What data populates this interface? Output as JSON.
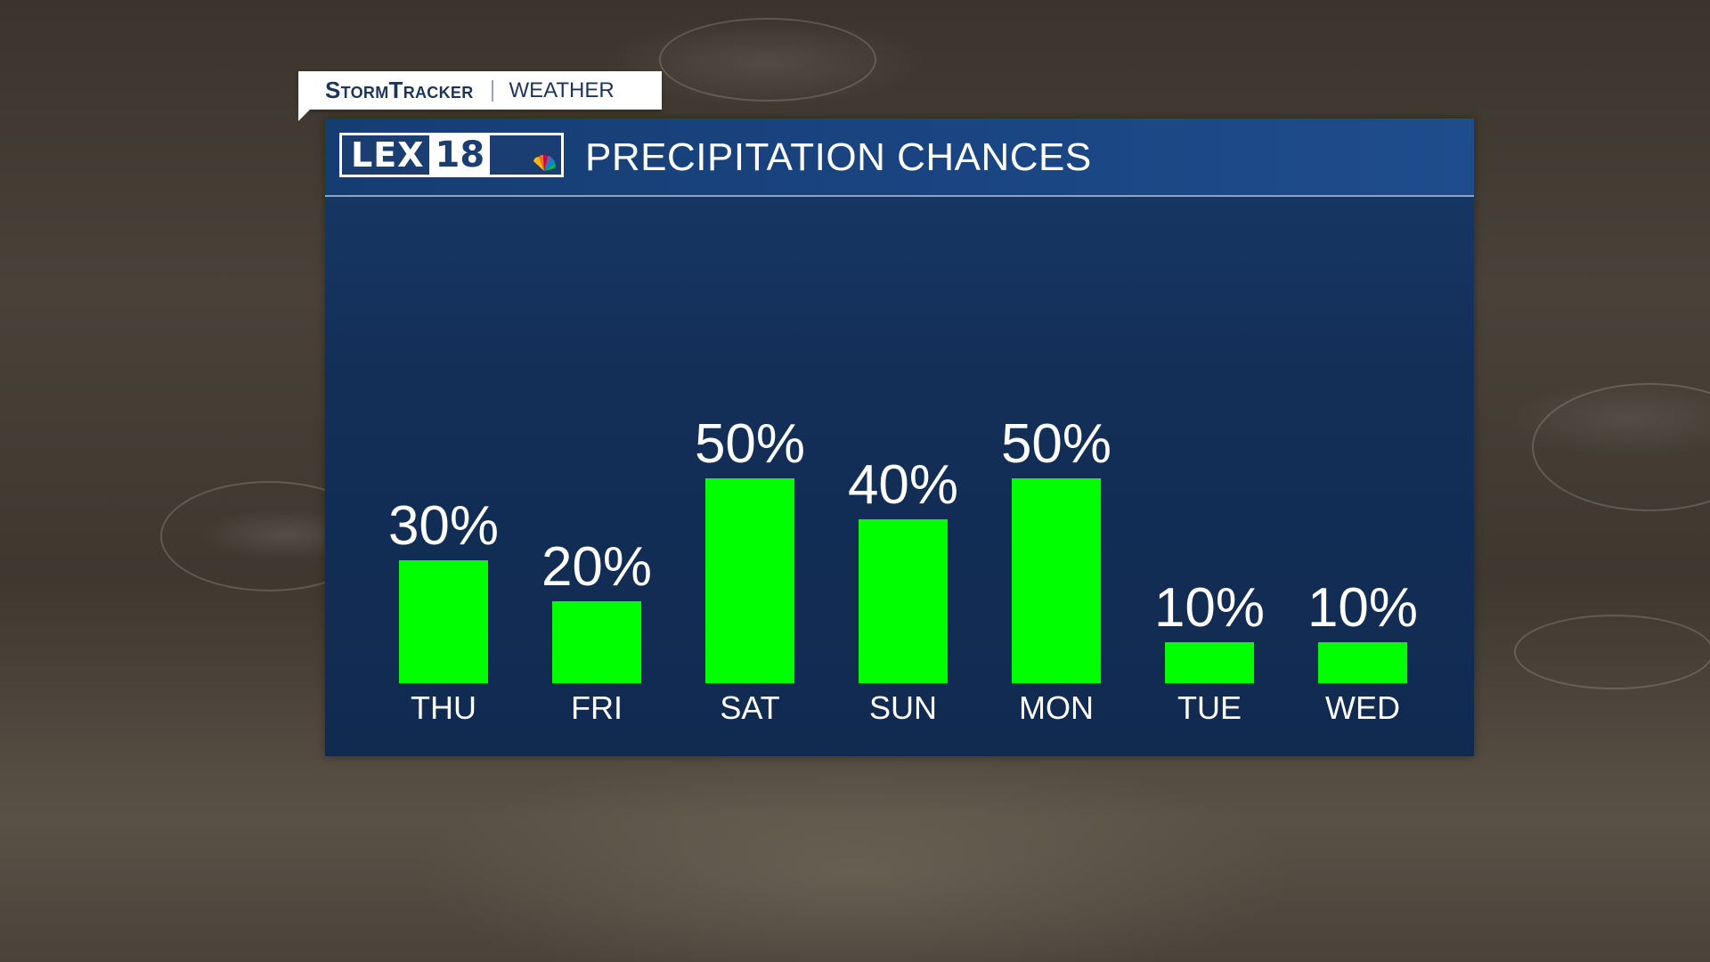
{
  "tag": {
    "brand": "StormTracker",
    "section": "WEATHER"
  },
  "logo": {
    "letters": "LEX",
    "number": "18"
  },
  "panel": {
    "title": "PRECIPITATION CHANCES"
  },
  "colors": {
    "bar": "#00ff00",
    "panel": "#143262",
    "text": "#ffffff"
  },
  "icons": [
    "peacock-icon"
  ],
  "chart_data": {
    "type": "bar",
    "title": "PRECIPITATION CHANCES",
    "categories": [
      "THU",
      "FRI",
      "SAT",
      "SUN",
      "MON",
      "TUE",
      "WED"
    ],
    "values": [
      30,
      20,
      50,
      40,
      50,
      10,
      10
    ],
    "labels": [
      "30%",
      "20%",
      "50%",
      "40%",
      "50%",
      "10%",
      "10%"
    ],
    "unit": "%",
    "ylim": [
      0,
      100
    ],
    "grid": false,
    "legend": "none"
  }
}
